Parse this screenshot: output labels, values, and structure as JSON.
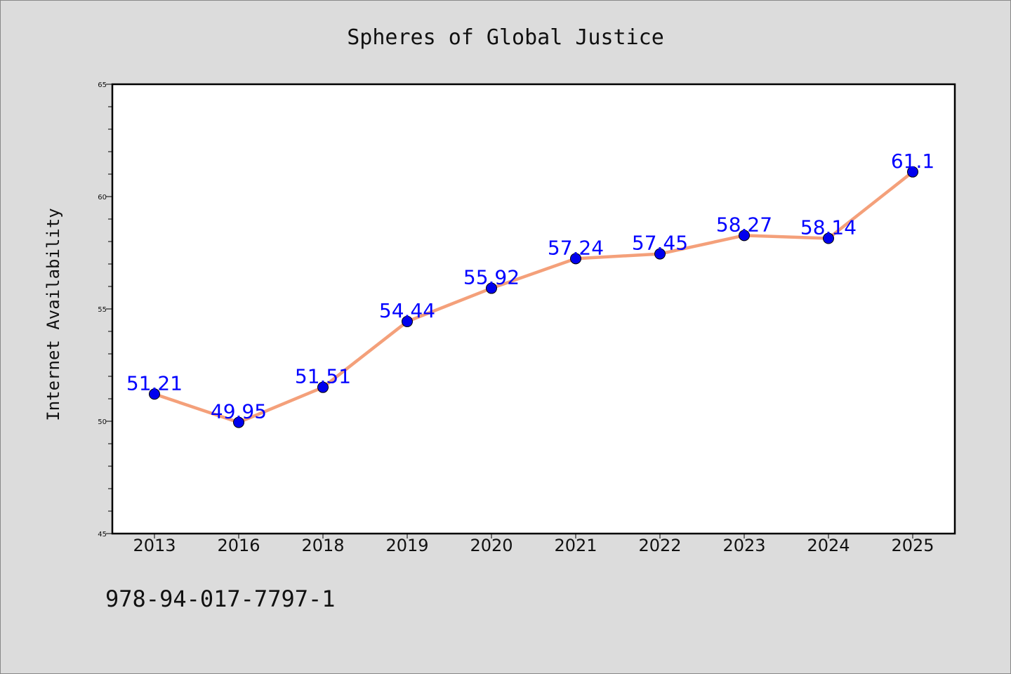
{
  "chart_data": {
    "type": "line",
    "title": "Spheres of Global Justice",
    "xlabel": "",
    "ylabel": "Internet Availability",
    "categories": [
      "2013",
      "2016",
      "2018",
      "2019",
      "2020",
      "2021",
      "2022",
      "2023",
      "2024",
      "2025"
    ],
    "series": [
      {
        "values": [
          51.21,
          49.95,
          51.51,
          54.44,
          55.92,
          57.24,
          57.45,
          58.27,
          58.14,
          61.1
        ],
        "labels": [
          "51.21",
          "49.95",
          "51.51",
          "54.44",
          "55.92",
          "57.24",
          "57.45",
          "58.27",
          "58.14",
          "61.1"
        ],
        "line_color": "#f4a07a",
        "marker_color": "#0000ee"
      }
    ],
    "ylim": [
      45,
      65
    ],
    "yticks": [
      45,
      50,
      55,
      60,
      65
    ],
    "ytick_labels": [
      "45",
      "50",
      "55",
      "60",
      "65"
    ],
    "grid": false,
    "label_color": "#0000ff"
  },
  "footer_text": "978-94-017-7797-1",
  "colors": {
    "background": "#dcdcdc",
    "plot_background": "#ffffff"
  }
}
